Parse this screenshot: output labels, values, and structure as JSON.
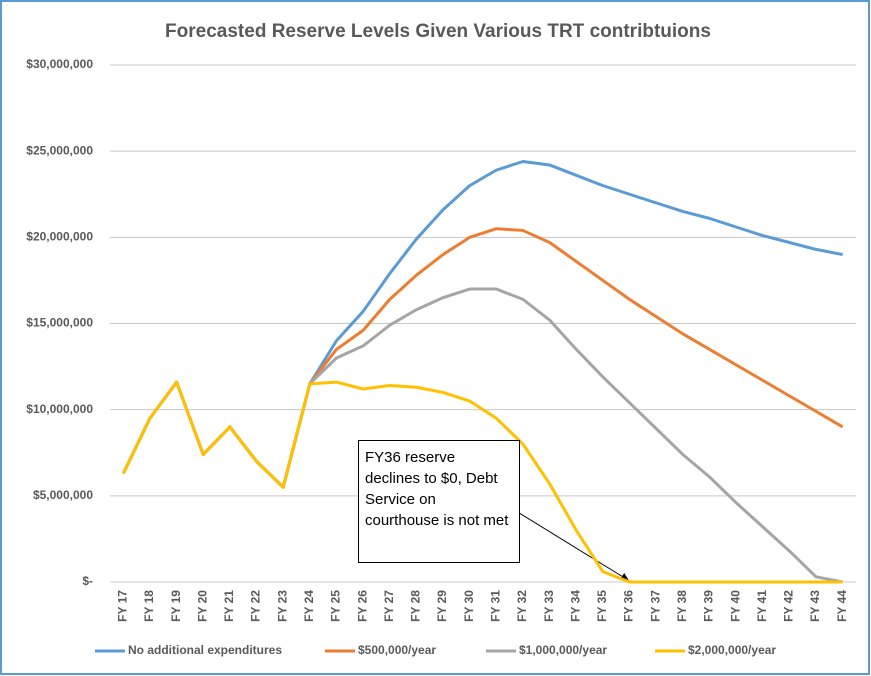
{
  "chart_data": {
    "type": "line",
    "title": "Forecasted Reserve Levels Given Various TRT contribtuions",
    "categories": [
      "FY 17",
      "FY 18",
      "FY 19",
      "FY 20",
      "FY 21",
      "FY 22",
      "FY 23",
      "FY 24",
      "FY 25",
      "FY 26",
      "FY 27",
      "FY 28",
      "FY 29",
      "FY 30",
      "FY 31",
      "FY 32",
      "FY 33",
      "FY 34",
      "FY 35",
      "FY 36",
      "FY 37",
      "FY 38",
      "FY 39",
      "FY 40",
      "FY 41",
      "FY 42",
      "FY 43",
      "FY 44"
    ],
    "series": [
      {
        "name": "No additional expenditures",
        "color": "#5b9bd5",
        "values": [
          6300000,
          9500000,
          11600000,
          7400000,
          9000000,
          7000000,
          5500000,
          11500000,
          14000000,
          15700000,
          17900000,
          19900000,
          21600000,
          23000000,
          23900000,
          24400000,
          24200000,
          23600000,
          23000000,
          22500000,
          22000000,
          21500000,
          21100000,
          20600000,
          20100000,
          19700000,
          19300000,
          19000000
        ]
      },
      {
        "name": "$500,000/year",
        "color": "#ed7d31",
        "values": [
          6300000,
          9500000,
          11600000,
          7400000,
          9000000,
          7000000,
          5500000,
          11500000,
          13500000,
          14600000,
          16400000,
          17800000,
          19000000,
          20000000,
          20500000,
          20400000,
          19700000,
          18600000,
          17500000,
          16400000,
          15400000,
          14400000,
          13500000,
          12600000,
          11700000,
          10800000,
          9900000,
          9000000
        ]
      },
      {
        "name": "$1,000,000/year",
        "color": "#a5a5a5",
        "values": [
          6300000,
          9500000,
          11600000,
          7400000,
          9000000,
          7000000,
          5500000,
          11500000,
          13000000,
          13700000,
          14900000,
          15800000,
          16500000,
          17000000,
          17000000,
          16400000,
          15200000,
          13500000,
          11900000,
          10400000,
          8900000,
          7400000,
          6100000,
          4600000,
          3200000,
          1800000,
          300000,
          0
        ]
      },
      {
        "name": "$2,000,000/year",
        "color": "#ffc000",
        "values": [
          6300000,
          9500000,
          11600000,
          7400000,
          9000000,
          7000000,
          5500000,
          11500000,
          11600000,
          11200000,
          11400000,
          11300000,
          11000000,
          10500000,
          9500000,
          8000000,
          5700000,
          3000000,
          600000,
          0,
          0,
          0,
          0,
          0,
          0,
          0,
          0,
          0
        ]
      }
    ],
    "ylim": [
      0,
      30000000
    ],
    "yticks": [
      {
        "value": 0,
        "label": "$-"
      },
      {
        "value": 5000000,
        "label": "$5,000,000"
      },
      {
        "value": 10000000,
        "label": "$10,000,000"
      },
      {
        "value": 15000000,
        "label": "$15,000,000"
      },
      {
        "value": 20000000,
        "label": "$20,000,000"
      },
      {
        "value": 25000000,
        "label": "$25,000,000"
      },
      {
        "value": 30000000,
        "label": "$30,000,000"
      }
    ],
    "grid": true,
    "legend": "bottom",
    "annotation": "FY36 reserve declines to $0, Debt Service on courthouse is not met"
  }
}
